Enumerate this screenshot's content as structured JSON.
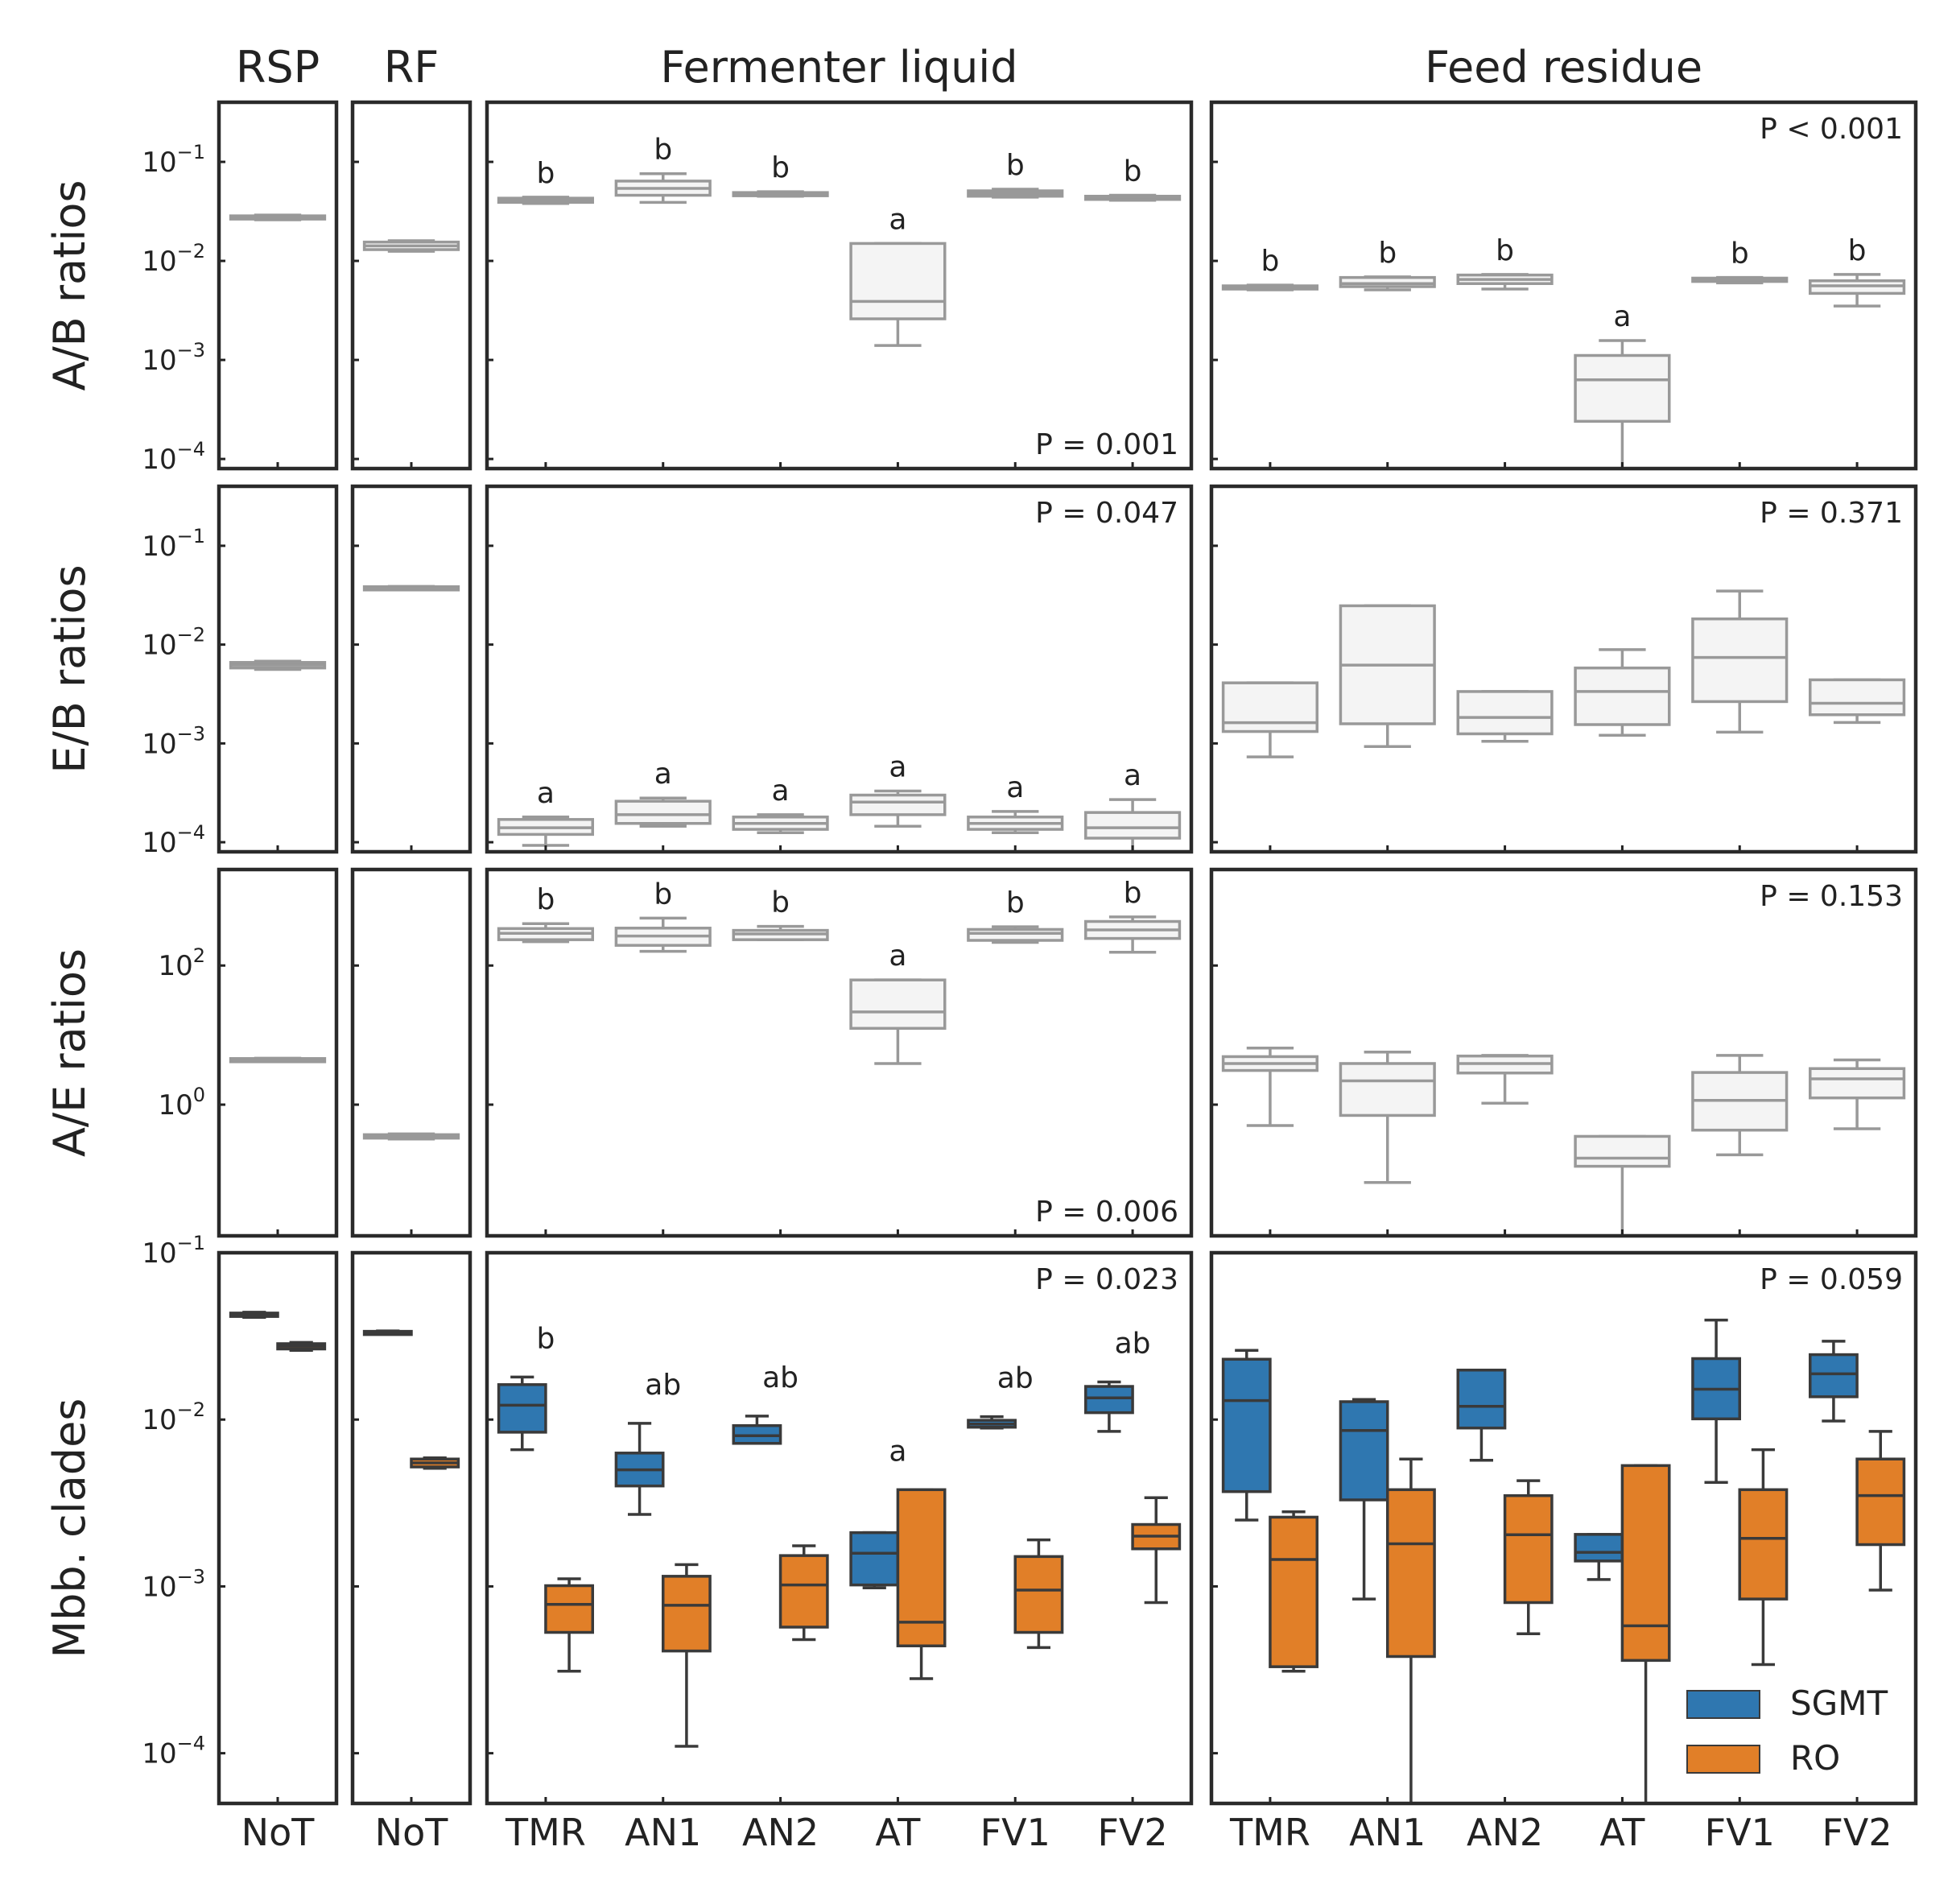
{
  "chart_data": {
    "type": "box",
    "scale": "log",
    "columns": [
      {
        "title": "RSP",
        "categories": [
          "NoT"
        ]
      },
      {
        "title": "RF",
        "categories": [
          "NoT"
        ]
      },
      {
        "title": "Fermenter liquid",
        "categories": [
          "TMR",
          "AN1",
          "AN2",
          "AT",
          "FV1",
          "FV2"
        ]
      },
      {
        "title": "Feed residue",
        "categories": [
          "TMR",
          "AN1",
          "AN2",
          "AT",
          "FV1",
          "FV2"
        ]
      }
    ],
    "rows": [
      {
        "ylabel": "A/B ratios",
        "ylim": [
          8e-05,
          0.4
        ],
        "yticks": [
          {
            "value": 0.1,
            "base": "10",
            "exp": "−1"
          },
          {
            "value": 0.01,
            "base": "10",
            "exp": "−2"
          },
          {
            "value": 0.001,
            "base": "10",
            "exp": "−3"
          },
          {
            "value": 0.0001,
            "base": "10",
            "exp": "−4"
          }
        ],
        "pvalues": [
          null,
          null,
          {
            "text": "P = 0.001",
            "position": "bottom-right"
          },
          {
            "text": "P < 0.001",
            "position": "top-right"
          }
        ],
        "panels": [
          [
            {
              "series": "all",
              "q1": 0.0265,
              "med": 0.0275,
              "q3": 0.0285,
              "lo": 0.026,
              "hi": 0.029
            }
          ],
          [
            {
              "series": "all",
              "q1": 0.013,
              "med": 0.0142,
              "q3": 0.0155,
              "lo": 0.0125,
              "hi": 0.016
            }
          ],
          [
            {
              "series": "all",
              "q1": 0.039,
              "med": 0.041,
              "q3": 0.043,
              "lo": 0.038,
              "hi": 0.044,
              "letter": "b"
            },
            {
              "series": "all",
              "q1": 0.046,
              "med": 0.054,
              "q3": 0.064,
              "lo": 0.039,
              "hi": 0.076,
              "letter": "b"
            },
            {
              "series": "all",
              "q1": 0.046,
              "med": 0.047,
              "q3": 0.049,
              "lo": 0.045,
              "hi": 0.05,
              "letter": "b"
            },
            {
              "series": "all",
              "q1": 0.0026,
              "med": 0.0039,
              "q3": 0.015,
              "lo": 0.0014,
              "hi": 0.015,
              "letter": "a"
            },
            {
              "series": "all",
              "q1": 0.045,
              "med": 0.048,
              "q3": 0.051,
              "lo": 0.044,
              "hi": 0.053,
              "letter": "b"
            },
            {
              "series": "all",
              "q1": 0.042,
              "med": 0.044,
              "q3": 0.045,
              "lo": 0.041,
              "hi": 0.046,
              "letter": "b"
            }
          ],
          [
            {
              "series": "all",
              "q1": 0.0052,
              "med": 0.0054,
              "q3": 0.0056,
              "lo": 0.0051,
              "hi": 0.0057,
              "letter": "b"
            },
            {
              "series": "all",
              "q1": 0.0055,
              "med": 0.0059,
              "q3": 0.0068,
              "lo": 0.0051,
              "hi": 0.0069,
              "letter": "b"
            },
            {
              "series": "all",
              "q1": 0.0059,
              "med": 0.0065,
              "q3": 0.0072,
              "lo": 0.0052,
              "hi": 0.0073,
              "letter": "b"
            },
            {
              "series": "all",
              "q1": 0.00024,
              "med": 0.00063,
              "q3": 0.00111,
              "lo": 8e-05,
              "hi": 0.00157,
              "letter": "a"
            },
            {
              "series": "all",
              "q1": 0.0062,
              "med": 0.0064,
              "q3": 0.0067,
              "lo": 0.006,
              "hi": 0.0068,
              "letter": "b"
            },
            {
              "series": "all",
              "q1": 0.0047,
              "med": 0.0056,
              "q3": 0.0063,
              "lo": 0.0035,
              "hi": 0.0073,
              "letter": "b"
            }
          ]
        ]
      },
      {
        "ylabel": "E/B ratios",
        "ylim": [
          8e-05,
          0.4
        ],
        "yticks": [
          {
            "value": 0.1,
            "base": "10",
            "exp": "−1"
          },
          {
            "value": 0.01,
            "base": "10",
            "exp": "−2"
          },
          {
            "value": 0.001,
            "base": "10",
            "exp": "−3"
          },
          {
            "value": 0.0001,
            "base": "10",
            "exp": "−4"
          }
        ],
        "pvalues": [
          null,
          null,
          {
            "text": "P = 0.047",
            "position": "top-right"
          },
          {
            "text": "P = 0.371",
            "position": "top-right"
          }
        ],
        "panels": [
          [
            {
              "series": "all",
              "q1": 0.0058,
              "med": 0.0062,
              "q3": 0.0066,
              "lo": 0.0056,
              "hi": 0.0068
            }
          ],
          [
            {
              "series": "all",
              "q1": 0.0375,
              "med": 0.038,
              "q3": 0.0385,
              "lo": 0.0372,
              "hi": 0.0388
            }
          ],
          [
            {
              "series": "all",
              "q1": 0.00012,
              "med": 0.00014,
              "q3": 0.00017,
              "lo": 9.3e-05,
              "hi": 0.00018,
              "letter": "a"
            },
            {
              "series": "all",
              "q1": 0.000155,
              "med": 0.00019,
              "q3": 0.00026,
              "lo": 0.000145,
              "hi": 0.00028,
              "letter": "a"
            },
            {
              "series": "all",
              "q1": 0.000135,
              "med": 0.000155,
              "q3": 0.00018,
              "lo": 0.000125,
              "hi": 0.00019,
              "letter": "a"
            },
            {
              "series": "all",
              "q1": 0.00019,
              "med": 0.000255,
              "q3": 0.0003,
              "lo": 0.000145,
              "hi": 0.00033,
              "letter": "a"
            },
            {
              "series": "all",
              "q1": 0.000135,
              "med": 0.000155,
              "q3": 0.00018,
              "lo": 0.000125,
              "hi": 0.000205,
              "letter": "a"
            },
            {
              "series": "all",
              "q1": 0.00011,
              "med": 0.00014,
              "q3": 0.0002,
              "lo": 8e-05,
              "hi": 0.00027,
              "letter": "a"
            }
          ],
          [
            {
              "series": "all",
              "q1": 0.00132,
              "med": 0.00162,
              "q3": 0.0041,
              "lo": 0.00073,
              "hi": 0.0041
            },
            {
              "series": "all",
              "q1": 0.00158,
              "med": 0.0062,
              "q3": 0.0247,
              "lo": 0.00093,
              "hi": 0.0247
            },
            {
              "series": "all",
              "q1": 0.00125,
              "med": 0.00183,
              "q3": 0.00335,
              "lo": 0.00105,
              "hi": 0.00335
            },
            {
              "series": "all",
              "q1": 0.00155,
              "med": 0.00335,
              "q3": 0.0058,
              "lo": 0.00121,
              "hi": 0.0089
            },
            {
              "series": "all",
              "q1": 0.00265,
              "med": 0.0074,
              "q3": 0.0182,
              "lo": 0.0013,
              "hi": 0.0348
            },
            {
              "series": "all",
              "q1": 0.00195,
              "med": 0.00255,
              "q3": 0.0044,
              "lo": 0.00163,
              "hi": 0.0044
            }
          ]
        ]
      },
      {
        "ylabel": "A/E ratios",
        "ylim": [
          0.013,
          2400
        ],
        "yticks": [
          {
            "value": 100,
            "base": "10",
            "exp": "2"
          },
          {
            "value": 1,
            "base": "10",
            "exp": "0"
          }
        ],
        "pvalues": [
          null,
          null,
          {
            "text": "P = 0.006",
            "position": "bottom-right"
          },
          {
            "text": "P = 0.153",
            "position": "top-right"
          }
        ],
        "panels": [
          [
            {
              "series": "all",
              "q1": 4.4,
              "med": 4.5,
              "q3": 4.6,
              "lo": 4.35,
              "hi": 4.65
            }
          ],
          [
            {
              "series": "all",
              "q1": 0.33,
              "med": 0.35,
              "q3": 0.37,
              "lo": 0.32,
              "hi": 0.38
            }
          ],
          [
            {
              "series": "all",
              "q1": 235,
              "med": 290,
              "q3": 340,
              "lo": 220,
              "hi": 400,
              "letter": "b"
            },
            {
              "series": "all",
              "q1": 195,
              "med": 265,
              "q3": 345,
              "lo": 160,
              "hi": 480,
              "letter": "b"
            },
            {
              "series": "all",
              "q1": 235,
              "med": 285,
              "q3": 320,
              "lo": 235,
              "hi": 365,
              "letter": "b"
            },
            {
              "series": "all",
              "q1": 12.5,
              "med": 21.5,
              "q3": 62,
              "lo": 3.9,
              "hi": 62,
              "letter": "a"
            },
            {
              "series": "all",
              "q1": 230,
              "med": 290,
              "q3": 330,
              "lo": 215,
              "hi": 360,
              "letter": "b"
            },
            {
              "series": "all",
              "q1": 245,
              "med": 325,
              "q3": 430,
              "lo": 155,
              "hi": 500,
              "letter": "b"
            }
          ],
          [
            {
              "series": "all",
              "q1": 3.1,
              "med": 3.9,
              "q3": 4.9,
              "lo": 0.5,
              "hi": 6.5
            },
            {
              "series": "all",
              "q1": 0.7,
              "med": 2.2,
              "q3": 3.9,
              "lo": 0.076,
              "hi": 5.7
            },
            {
              "series": "all",
              "q1": 2.85,
              "med": 3.9,
              "q3": 5.0,
              "lo": 1.05,
              "hi": 5.1
            },
            {
              "series": "all",
              "q1": 0.13,
              "med": 0.17,
              "q3": 0.35,
              "lo": 0.013,
              "hi": 0.35
            },
            {
              "series": "all",
              "q1": 0.43,
              "med": 1.15,
              "q3": 2.9,
              "lo": 0.19,
              "hi": 5.1
            },
            {
              "series": "all",
              "q1": 1.25,
              "med": 2.35,
              "q3": 3.3,
              "lo": 0.45,
              "hi": 4.4
            }
          ]
        ]
      },
      {
        "ylabel": "Mbb. clades",
        "ylim": [
          5e-05,
          0.1
        ],
        "yticks": [
          {
            "value": 0.1,
            "base": "10",
            "exp": "−1"
          },
          {
            "value": 0.01,
            "base": "10",
            "exp": "−2"
          },
          {
            "value": 0.001,
            "base": "10",
            "exp": "−3"
          },
          {
            "value": 0.0001,
            "base": "10",
            "exp": "−4"
          }
        ],
        "pvalues": [
          null,
          null,
          {
            "text": "P = 0.023",
            "position": "top-right"
          },
          {
            "text": "P = 0.059",
            "position": "top-right"
          }
        ],
        "letters": [
          null,
          null,
          [
            "b",
            "ab",
            "ab",
            "a",
            "ab",
            "ab"
          ],
          null
        ],
        "panels": [
          [
            {
              "series": "SGMT",
              "q1": 0.0415,
              "med": 0.0425,
              "q3": 0.0435,
              "lo": 0.041,
              "hi": 0.044
            },
            {
              "series": "RO",
              "q1": 0.0265,
              "med": 0.0275,
              "q3": 0.0285,
              "lo": 0.026,
              "hi": 0.029
            }
          ],
          [
            {
              "series": "SGMT",
              "q1": 0.0332,
              "med": 0.0335,
              "q3": 0.0338,
              "lo": 0.033,
              "hi": 0.034
            },
            {
              "series": "RO",
              "q1": 0.0052,
              "med": 0.0055,
              "q3": 0.0058,
              "lo": 0.0051,
              "hi": 0.0059
            }
          ],
          [
            {
              "series": "SGMT",
              "group": 0,
              "q1": 0.0084,
              "med": 0.0122,
              "q3": 0.0162,
              "lo": 0.0066,
              "hi": 0.018
            },
            {
              "series": "RO",
              "group": 0,
              "q1": 0.00053,
              "med": 0.00078,
              "q3": 0.00101,
              "lo": 0.00031,
              "hi": 0.00111
            },
            {
              "series": "SGMT",
              "group": 1,
              "q1": 0.004,
              "med": 0.005,
              "q3": 0.0063,
              "lo": 0.0027,
              "hi": 0.0095
            },
            {
              "series": "RO",
              "group": 1,
              "q1": 0.00041,
              "med": 0.00077,
              "q3": 0.00115,
              "lo": 0.00011,
              "hi": 0.00135
            },
            {
              "series": "SGMT",
              "group": 2,
              "q1": 0.0072,
              "med": 0.008,
              "q3": 0.0092,
              "lo": 0.0072,
              "hi": 0.0105
            },
            {
              "series": "RO",
              "group": 2,
              "q1": 0.00057,
              "med": 0.00102,
              "q3": 0.00153,
              "lo": 0.00048,
              "hi": 0.00175
            },
            {
              "series": "SGMT",
              "group": 3,
              "q1": 0.00102,
              "med": 0.00158,
              "q3": 0.0021,
              "lo": 0.00098,
              "hi": 0.0021
            },
            {
              "series": "RO",
              "group": 3,
              "q1": 0.00044,
              "med": 0.00061,
              "q3": 0.0038,
              "lo": 0.00028,
              "hi": 0.0038
            },
            {
              "series": "SGMT",
              "group": 4,
              "q1": 0.009,
              "med": 0.0094,
              "q3": 0.0099,
              "lo": 0.0089,
              "hi": 0.0104
            },
            {
              "series": "RO",
              "group": 4,
              "q1": 0.00053,
              "med": 0.00095,
              "q3": 0.00151,
              "lo": 0.00043,
              "hi": 0.0019
            },
            {
              "series": "SGMT",
              "group": 5,
              "q1": 0.011,
              "med": 0.0135,
              "q3": 0.0158,
              "lo": 0.0085,
              "hi": 0.0168
            },
            {
              "series": "RO",
              "group": 5,
              "q1": 0.00168,
              "med": 0.002,
              "q3": 0.00235,
              "lo": 0.0008,
              "hi": 0.0034
            }
          ],
          [
            {
              "series": "SGMT",
              "group": 0,
              "q1": 0.0037,
              "med": 0.013,
              "q3": 0.023,
              "lo": 0.0025,
              "hi": 0.026
            },
            {
              "series": "RO",
              "group": 0,
              "q1": 0.00033,
              "med": 0.00145,
              "q3": 0.0026,
              "lo": 0.00031,
              "hi": 0.0028
            },
            {
              "series": "SGMT",
              "group": 1,
              "q1": 0.0033,
              "med": 0.0086,
              "q3": 0.0128,
              "lo": 0.00084,
              "hi": 0.0132
            },
            {
              "series": "RO",
              "group": 1,
              "q1": 0.00038,
              "med": 0.0018,
              "q3": 0.0038,
              "lo": 5e-05,
              "hi": 0.0058
            },
            {
              "series": "SGMT",
              "group": 2,
              "q1": 0.0089,
              "med": 0.012,
              "q3": 0.0198,
              "lo": 0.0057,
              "hi": 0.0198
            },
            {
              "series": "RO",
              "group": 2,
              "q1": 0.0008,
              "med": 0.00204,
              "q3": 0.0035,
              "lo": 0.00052,
              "hi": 0.0043
            },
            {
              "series": "SGMT",
              "group": 3,
              "q1": 0.00142,
              "med": 0.0016,
              "q3": 0.00205,
              "lo": 0.0011,
              "hi": 0.00205
            },
            {
              "series": "RO",
              "group": 3,
              "q1": 0.00036,
              "med": 0.00058,
              "q3": 0.0053,
              "lo": 5e-05,
              "hi": 0.0053
            },
            {
              "series": "SGMT",
              "group": 4,
              "q1": 0.0101,
              "med": 0.0152,
              "q3": 0.0232,
              "lo": 0.0042,
              "hi": 0.0395
            },
            {
              "series": "RO",
              "group": 4,
              "q1": 0.00084,
              "med": 0.00194,
              "q3": 0.0038,
              "lo": 0.00034,
              "hi": 0.0066
            },
            {
              "series": "SGMT",
              "group": 5,
              "q1": 0.0137,
              "med": 0.0188,
              "q3": 0.0245,
              "lo": 0.0098,
              "hi": 0.0295
            },
            {
              "series": "RO",
              "group": 5,
              "q1": 0.00178,
              "med": 0.0035,
              "q3": 0.0058,
              "lo": 0.00095,
              "hi": 0.0085
            }
          ]
        ]
      }
    ],
    "legend": {
      "position": "lower-right",
      "entries": [
        {
          "name": "SGMT",
          "color": "#2f77b0"
        },
        {
          "name": "RO",
          "color": "#e17f28"
        }
      ]
    },
    "colors": {
      "single": "#f4f4f4",
      "single_edge": "#999999",
      "SGMT": "#2f77b0",
      "RO": "#e17f28",
      "grouped_edge": "#3a3a3a",
      "frame": "#2a2a2a"
    }
  }
}
